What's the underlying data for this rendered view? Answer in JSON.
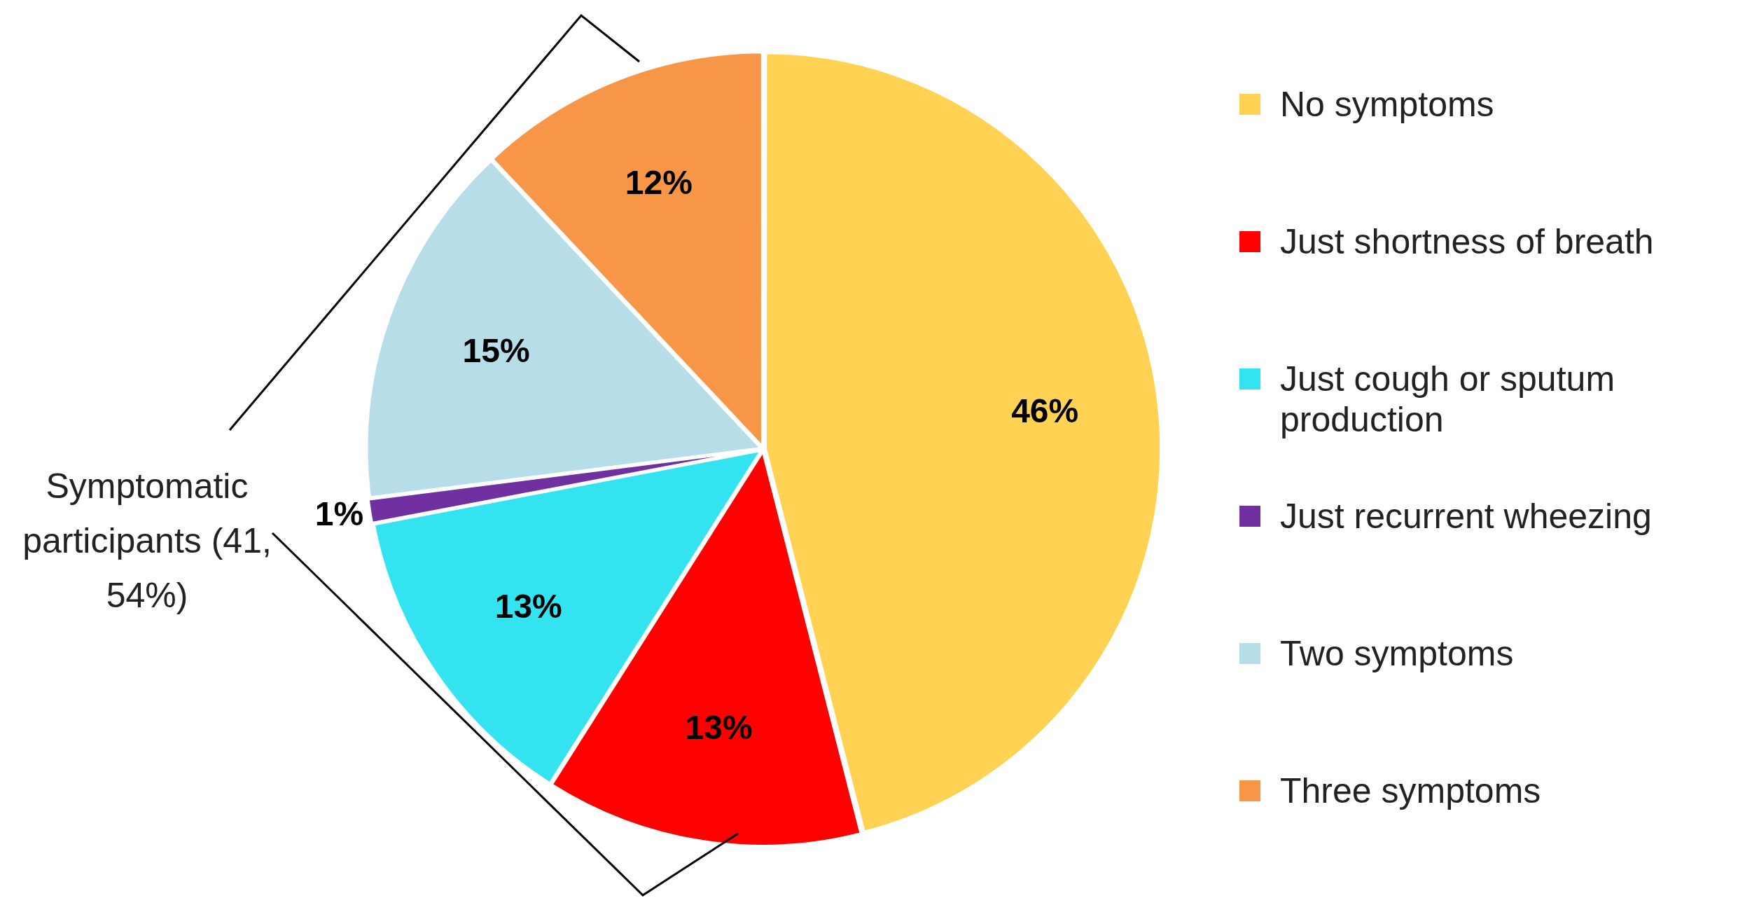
{
  "chart_data": {
    "type": "pie",
    "categories": [
      "No symptoms",
      "Just shortness of breath",
      "Just cough or sputum production",
      "Just recurrent wheezing",
      "Two symptoms",
      "Three symptoms"
    ],
    "values": [
      46,
      13,
      13,
      1,
      15,
      12
    ],
    "colors": [
      "#ffd254",
      "#ff0000",
      "#33e3f0",
      "#7030a0",
      "#b7dde8",
      "#f79646"
    ],
    "value_labels": [
      "46%",
      "13%",
      "13%",
      "1%",
      "15%",
      "12%"
    ],
    "legend": "right",
    "annotations": [
      "Symptomatic participants (41, 54%)"
    ]
  }
}
